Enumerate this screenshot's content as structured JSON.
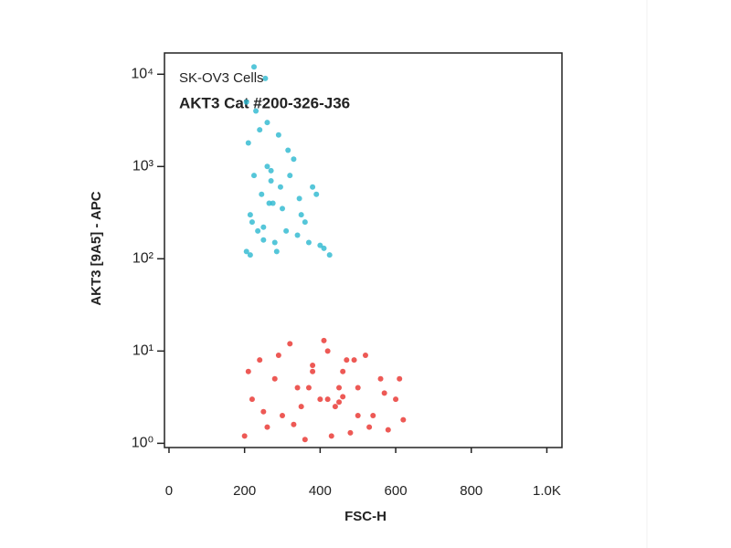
{
  "chart_data": {
    "type": "scatter",
    "annotations": [
      "SK-OV3 Cells",
      "AKT3 Cat #200-326-J36"
    ],
    "x_label": "FSC-H",
    "y_label": "AKT3 [9A5] - APC",
    "xlim": [
      -12,
      1040
    ],
    "xticks": [
      0,
      200,
      400,
      600,
      800,
      {
        "value": 1000,
        "label": "1.0K"
      }
    ],
    "ylim": [
      0.9,
      17000
    ],
    "yscale": "log",
    "yticks": [
      {
        "value": 1,
        "label": "10⁰"
      },
      {
        "value": 10,
        "label": "10¹"
      },
      {
        "value": 100,
        "label": "10²"
      },
      {
        "value": 1000,
        "label": "10³"
      },
      {
        "value": 10000,
        "label": "10⁴"
      }
    ],
    "series": [
      {
        "color": "#2ab8d0",
        "x": [
          205,
          215,
          225,
          240,
          255,
          265,
          280,
          295,
          310,
          330,
          350,
          370,
          390,
          410,
          425,
          210,
          230,
          250,
          270,
          290,
          220,
          245,
          260,
          300,
          320,
          340,
          360,
          380,
          400,
          205,
          235,
          275,
          215,
          260,
          285,
          315,
          345,
          225,
          250,
          270
        ],
        "values": [
          120,
          300,
          800,
          2500,
          9000,
          400,
          150,
          600,
          200,
          1200,
          300,
          150,
          500,
          130,
          110,
          1800,
          4000,
          160,
          700,
          2200,
          250,
          500,
          1000,
          350,
          800,
          180,
          250,
          600,
          140,
          5000,
          200,
          400,
          110,
          3000,
          120,
          1500,
          450,
          12000,
          220,
          900
        ]
      },
      {
        "color": "#e8302a",
        "x": [
          200,
          220,
          240,
          260,
          280,
          300,
          320,
          340,
          360,
          380,
          400,
          420,
          440,
          460,
          480,
          500,
          520,
          540,
          560,
          580,
          600,
          620,
          210,
          250,
          290,
          330,
          370,
          410,
          450,
          490,
          530,
          570,
          610,
          350,
          380,
          420,
          450,
          470,
          500,
          430,
          460
        ],
        "values": [
          1.2,
          3,
          8,
          1.5,
          5,
          2,
          12,
          4,
          1.1,
          7,
          3,
          10,
          2.5,
          6,
          1.3,
          4,
          9,
          2,
          5,
          1.4,
          3,
          1.8,
          6,
          2.2,
          9,
          1.6,
          4,
          13,
          2.8,
          8,
          1.5,
          3.5,
          5,
          2.5,
          6,
          3,
          4,
          8,
          2,
          1.2,
          3.2
        ]
      }
    ]
  }
}
